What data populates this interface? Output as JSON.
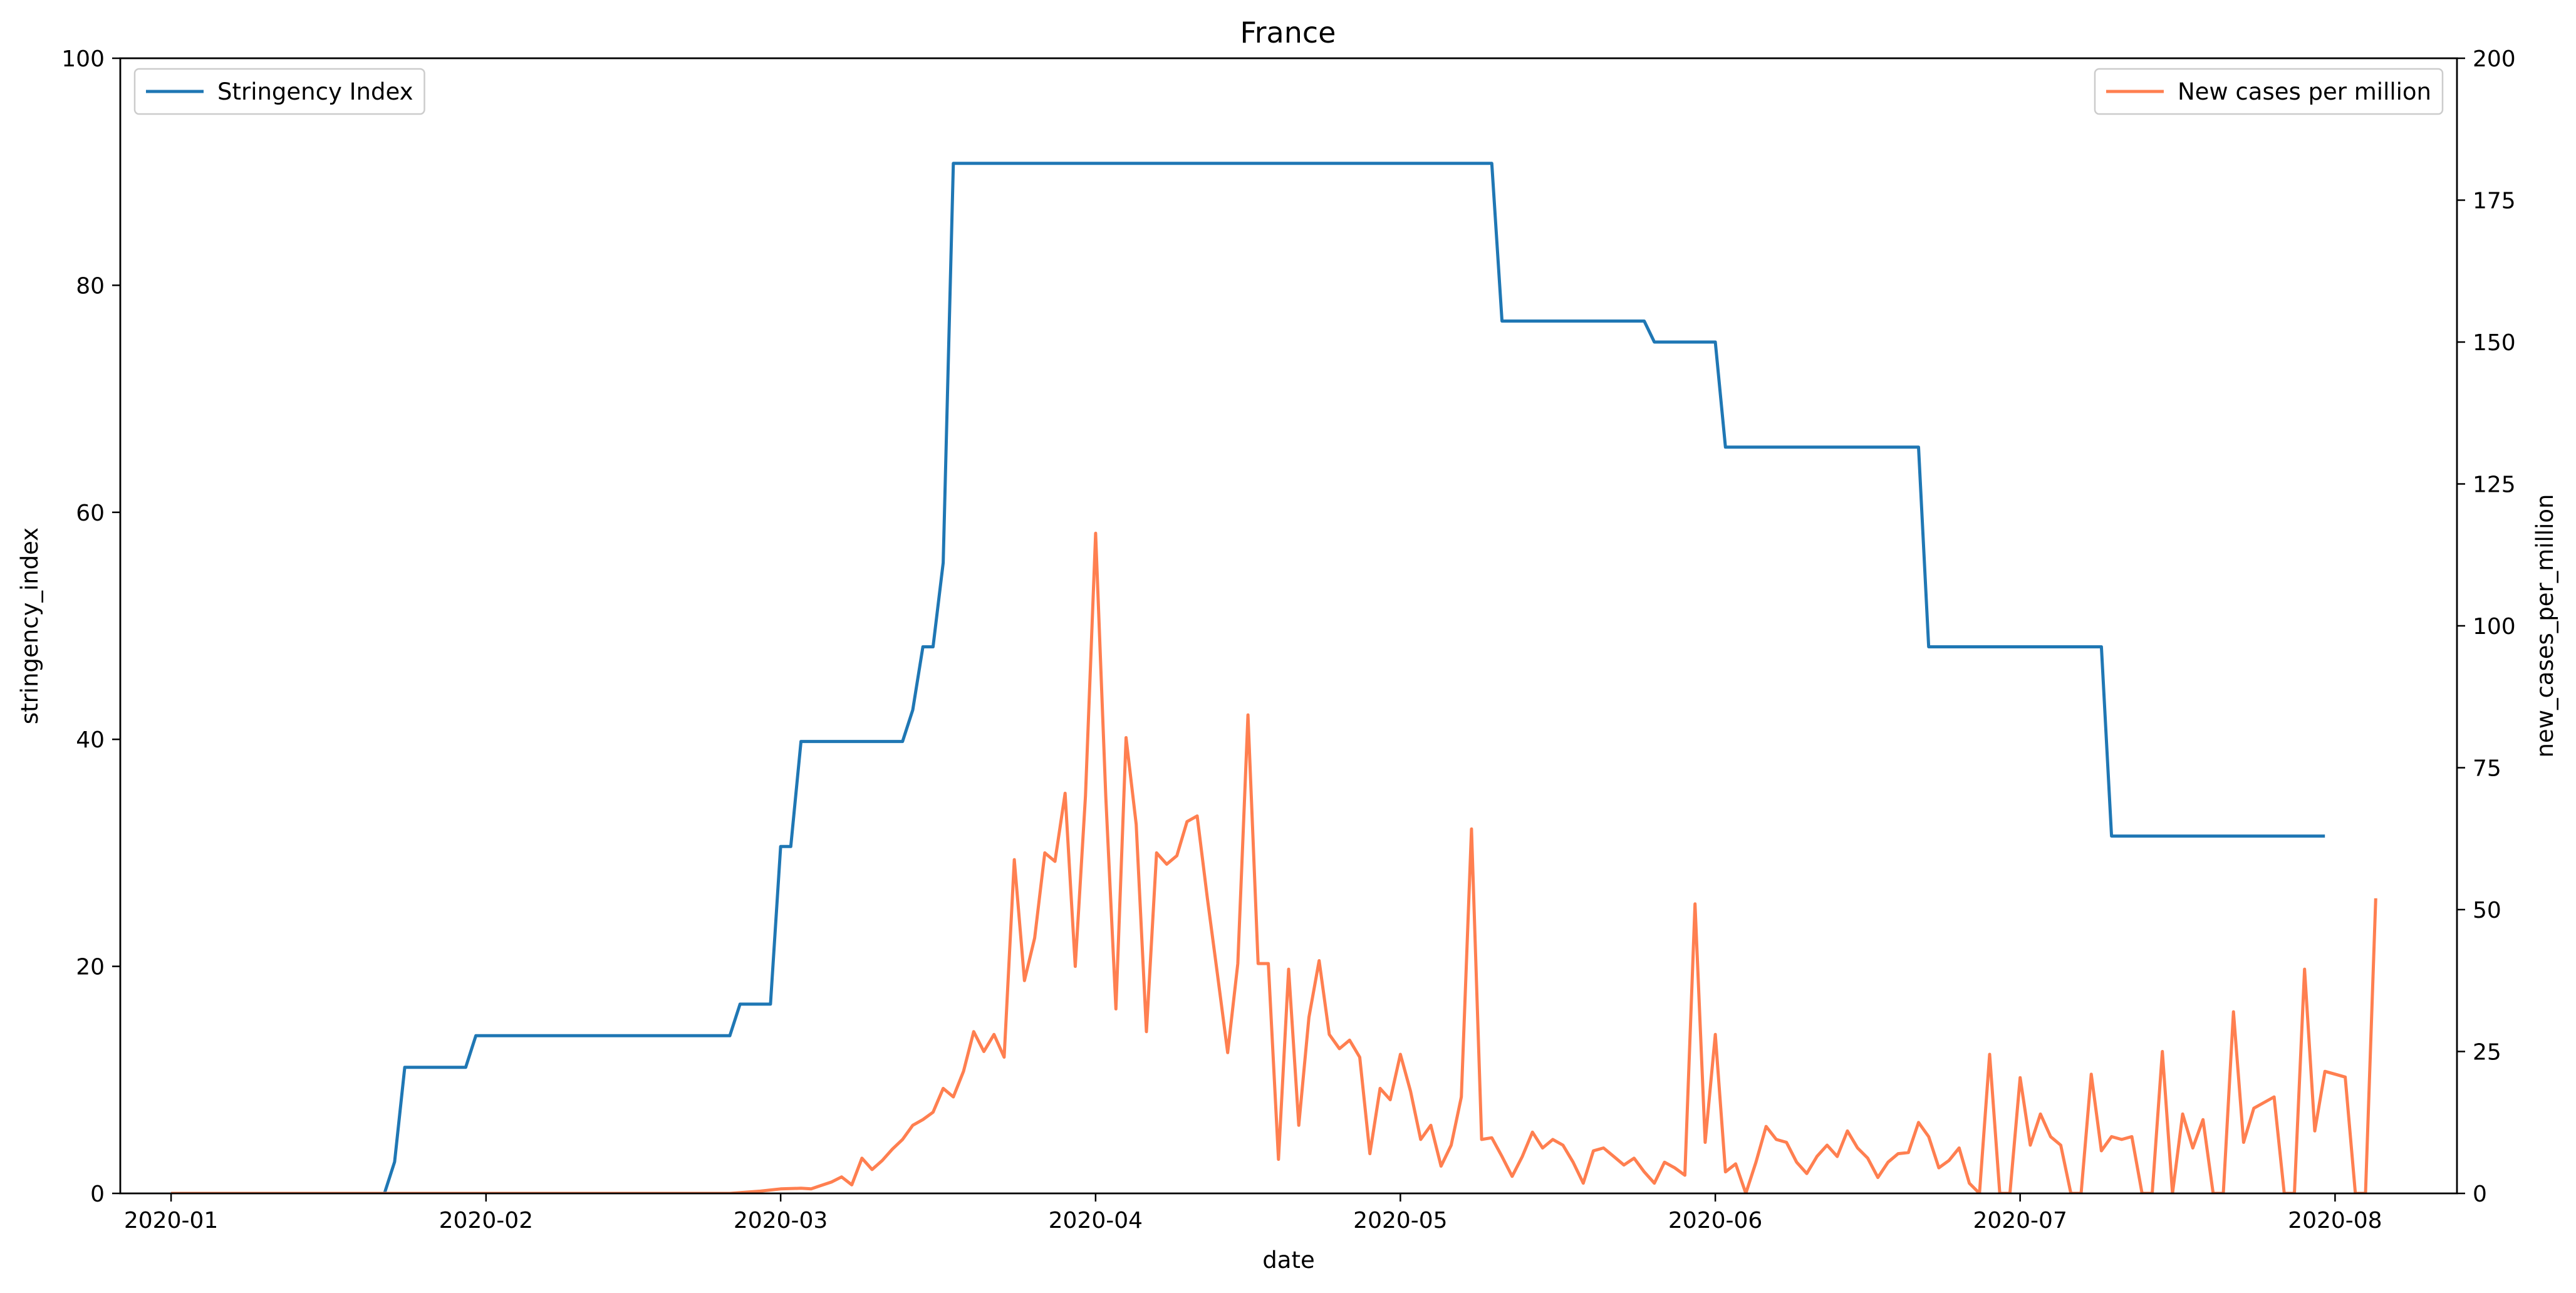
{
  "chart_data": {
    "type": "line",
    "title": "France",
    "xlabel": "date",
    "ylabel_left": "stringency_index",
    "ylabel_right": "new_cases_per_million",
    "x_axis": {
      "min": "2019-12-27",
      "max": "2020-08-13",
      "ticks": [
        "2020-01-01",
        "2020-02-01",
        "2020-03-01",
        "2020-04-01",
        "2020-05-01",
        "2020-06-01",
        "2020-07-01",
        "2020-08-01"
      ],
      "tick_labels": [
        "2020-01",
        "2020-02",
        "2020-03",
        "2020-04",
        "2020-05",
        "2020-06",
        "2020-07",
        "2020-08"
      ]
    },
    "y_left": {
      "min": 0,
      "max": 100,
      "ticks": [
        0,
        20,
        40,
        60,
        80,
        100
      ],
      "tick_labels": [
        "0",
        "20",
        "40",
        "60",
        "80",
        "100"
      ]
    },
    "y_right": {
      "min": 0,
      "max": 200,
      "ticks": [
        0,
        25,
        50,
        75,
        100,
        125,
        150,
        175,
        200
      ],
      "tick_labels": [
        "0",
        "25",
        "50",
        "75",
        "100",
        "125",
        "150",
        "175",
        "200"
      ]
    },
    "grid": false,
    "series": [
      {
        "name": "Stringency Index",
        "axis": "left",
        "color": "#1f77b4",
        "legend_position": "upper-left",
        "points": [
          [
            "2020-01-01",
            0
          ],
          [
            "2020-01-22",
            0
          ],
          [
            "2020-01-23",
            2.78
          ],
          [
            "2020-01-24",
            11.11
          ],
          [
            "2020-01-30",
            11.11
          ],
          [
            "2020-01-31",
            13.89
          ],
          [
            "2020-02-25",
            13.89
          ],
          [
            "2020-02-26",
            16.67
          ],
          [
            "2020-02-29",
            16.67
          ],
          [
            "2020-03-01",
            30.56
          ],
          [
            "2020-03-02",
            30.56
          ],
          [
            "2020-03-03",
            39.81
          ],
          [
            "2020-03-13",
            39.81
          ],
          [
            "2020-03-14",
            42.59
          ],
          [
            "2020-03-15",
            48.15
          ],
          [
            "2020-03-16",
            48.15
          ],
          [
            "2020-03-17",
            55.56
          ],
          [
            "2020-03-18",
            90.74
          ],
          [
            "2020-05-10",
            90.74
          ],
          [
            "2020-05-11",
            76.85
          ],
          [
            "2020-05-25",
            76.85
          ],
          [
            "2020-05-26",
            75.0
          ],
          [
            "2020-06-01",
            75.0
          ],
          [
            "2020-06-02",
            65.74
          ],
          [
            "2020-06-21",
            65.74
          ],
          [
            "2020-06-22",
            48.15
          ],
          [
            "2020-07-09",
            48.15
          ],
          [
            "2020-07-10",
            31.48
          ],
          [
            "2020-07-31",
            31.48
          ]
        ]
      },
      {
        "name": "New cases per million",
        "axis": "right",
        "color": "#ff7f50",
        "legend_position": "upper-right",
        "points": [
          [
            "2020-01-01",
            0
          ],
          [
            "2020-02-25",
            0
          ],
          [
            "2020-02-28",
            0.4
          ],
          [
            "2020-03-01",
            0.8
          ],
          [
            "2020-03-03",
            0.9
          ],
          [
            "2020-03-04",
            0.8
          ],
          [
            "2020-03-05",
            1.4
          ],
          [
            "2020-03-06",
            2.0
          ],
          [
            "2020-03-07",
            2.9
          ],
          [
            "2020-03-08",
            1.5
          ],
          [
            "2020-03-09",
            6.2
          ],
          [
            "2020-03-10",
            4.2
          ],
          [
            "2020-03-11",
            5.8
          ],
          [
            "2020-03-12",
            7.8
          ],
          [
            "2020-03-13",
            9.5
          ],
          [
            "2020-03-14",
            12.0
          ],
          [
            "2020-03-15",
            13.0
          ],
          [
            "2020-03-16",
            14.3
          ],
          [
            "2020-03-17",
            18.5
          ],
          [
            "2020-03-18",
            17.0
          ],
          [
            "2020-03-19",
            21.5
          ],
          [
            "2020-03-20",
            28.5
          ],
          [
            "2020-03-21",
            25.0
          ],
          [
            "2020-03-22",
            28.0
          ],
          [
            "2020-03-23",
            24.0
          ],
          [
            "2020-03-24",
            58.8
          ],
          [
            "2020-03-25",
            37.5
          ],
          [
            "2020-03-26",
            45.0
          ],
          [
            "2020-03-27",
            60.0
          ],
          [
            "2020-03-28",
            58.5
          ],
          [
            "2020-03-29",
            70.5
          ],
          [
            "2020-03-30",
            40.0
          ],
          [
            "2020-03-31",
            70.0
          ],
          [
            "2020-04-01",
            116.3
          ],
          [
            "2020-04-02",
            70.0
          ],
          [
            "2020-04-03",
            32.5
          ],
          [
            "2020-04-04",
            80.3
          ],
          [
            "2020-04-05",
            65.0
          ],
          [
            "2020-04-06",
            28.5
          ],
          [
            "2020-04-07",
            60.0
          ],
          [
            "2020-04-08",
            58.0
          ],
          [
            "2020-04-09",
            59.5
          ],
          [
            "2020-04-10",
            65.5
          ],
          [
            "2020-04-11",
            66.5
          ],
          [
            "2020-04-12",
            52.0
          ],
          [
            "2020-04-13",
            38.5
          ],
          [
            "2020-04-14",
            24.8
          ],
          [
            "2020-04-15",
            40.5
          ],
          [
            "2020-04-16",
            84.3
          ],
          [
            "2020-04-17",
            40.5
          ],
          [
            "2020-04-18",
            40.5
          ],
          [
            "2020-04-19",
            6.0
          ],
          [
            "2020-04-20",
            39.5
          ],
          [
            "2020-04-21",
            12.0
          ],
          [
            "2020-04-22",
            31.0
          ],
          [
            "2020-04-23",
            41.0
          ],
          [
            "2020-04-24",
            28.0
          ],
          [
            "2020-04-25",
            25.5
          ],
          [
            "2020-04-26",
            27.0
          ],
          [
            "2020-04-27",
            24.0
          ],
          [
            "2020-04-28",
            7.0
          ],
          [
            "2020-04-29",
            18.5
          ],
          [
            "2020-04-30",
            16.5
          ],
          [
            "2020-05-01",
            24.5
          ],
          [
            "2020-05-02",
            18.0
          ],
          [
            "2020-05-03",
            9.5
          ],
          [
            "2020-05-04",
            12.0
          ],
          [
            "2020-05-05",
            4.8
          ],
          [
            "2020-05-06",
            8.5
          ],
          [
            "2020-05-07",
            17.0
          ],
          [
            "2020-05-08",
            64.2
          ],
          [
            "2020-05-09",
            9.5
          ],
          [
            "2020-05-10",
            9.8
          ],
          [
            "2020-05-11",
            6.5
          ],
          [
            "2020-05-12",
            3.0
          ],
          [
            "2020-05-13",
            6.5
          ],
          [
            "2020-05-14",
            10.8
          ],
          [
            "2020-05-15",
            8.0
          ],
          [
            "2020-05-16",
            9.5
          ],
          [
            "2020-05-17",
            8.5
          ],
          [
            "2020-05-18",
            5.5
          ],
          [
            "2020-05-19",
            1.8
          ],
          [
            "2020-05-20",
            7.5
          ],
          [
            "2020-05-21",
            8.0
          ],
          [
            "2020-05-22",
            6.5
          ],
          [
            "2020-05-23",
            5.0
          ],
          [
            "2020-05-24",
            6.2
          ],
          [
            "2020-05-25",
            3.8
          ],
          [
            "2020-05-26",
            1.8
          ],
          [
            "2020-05-27",
            5.5
          ],
          [
            "2020-05-28",
            4.5
          ],
          [
            "2020-05-29",
            3.2
          ],
          [
            "2020-05-30",
            51.0
          ],
          [
            "2020-05-31",
            9.0
          ],
          [
            "2020-06-01",
            28.0
          ],
          [
            "2020-06-02",
            3.8
          ],
          [
            "2020-06-03",
            5.2
          ],
          [
            "2020-06-04",
            0
          ],
          [
            "2020-06-05",
            5.5
          ],
          [
            "2020-06-06",
            11.8
          ],
          [
            "2020-06-07",
            9.5
          ],
          [
            "2020-06-08",
            9.0
          ],
          [
            "2020-06-09",
            5.5
          ],
          [
            "2020-06-10",
            3.5
          ],
          [
            "2020-06-11",
            6.5
          ],
          [
            "2020-06-12",
            8.5
          ],
          [
            "2020-06-13",
            6.5
          ],
          [
            "2020-06-14",
            11.0
          ],
          [
            "2020-06-15",
            8.0
          ],
          [
            "2020-06-16",
            6.2
          ],
          [
            "2020-06-17",
            2.8
          ],
          [
            "2020-06-18",
            5.5
          ],
          [
            "2020-06-19",
            7.0
          ],
          [
            "2020-06-20",
            7.2
          ],
          [
            "2020-06-21",
            12.5
          ],
          [
            "2020-06-22",
            10.0
          ],
          [
            "2020-06-23",
            4.5
          ],
          [
            "2020-06-24",
            5.8
          ],
          [
            "2020-06-25",
            8.0
          ],
          [
            "2020-06-26",
            1.8
          ],
          [
            "2020-06-27",
            0
          ],
          [
            "2020-06-28",
            24.5
          ],
          [
            "2020-06-29",
            0
          ],
          [
            "2020-06-30",
            0
          ],
          [
            "2020-07-01",
            20.4
          ],
          [
            "2020-07-02",
            8.5
          ],
          [
            "2020-07-03",
            14.0
          ],
          [
            "2020-07-04",
            10.0
          ],
          [
            "2020-07-05",
            8.5
          ],
          [
            "2020-07-06",
            0
          ],
          [
            "2020-07-07",
            0
          ],
          [
            "2020-07-08",
            21.0
          ],
          [
            "2020-07-09",
            7.5
          ],
          [
            "2020-07-10",
            10.0
          ],
          [
            "2020-07-11",
            9.5
          ],
          [
            "2020-07-12",
            10.0
          ],
          [
            "2020-07-13",
            0
          ],
          [
            "2020-07-14",
            0
          ],
          [
            "2020-07-15",
            25.0
          ],
          [
            "2020-07-16",
            0
          ],
          [
            "2020-07-17",
            14.0
          ],
          [
            "2020-07-18",
            8.0
          ],
          [
            "2020-07-19",
            13.0
          ],
          [
            "2020-07-20",
            0
          ],
          [
            "2020-07-21",
            0
          ],
          [
            "2020-07-22",
            32.0
          ],
          [
            "2020-07-23",
            9.0
          ],
          [
            "2020-07-24",
            15.0
          ],
          [
            "2020-07-25",
            16.0
          ],
          [
            "2020-07-26",
            17.0
          ],
          [
            "2020-07-27",
            0
          ],
          [
            "2020-07-28",
            0
          ],
          [
            "2020-07-29",
            39.5
          ],
          [
            "2020-07-30",
            11.0
          ],
          [
            "2020-07-31",
            21.5
          ],
          [
            "2020-08-01",
            21.0
          ],
          [
            "2020-08-02",
            20.5
          ],
          [
            "2020-08-03",
            0
          ],
          [
            "2020-08-04",
            0
          ],
          [
            "2020-08-05",
            52.0
          ]
        ]
      }
    ]
  }
}
